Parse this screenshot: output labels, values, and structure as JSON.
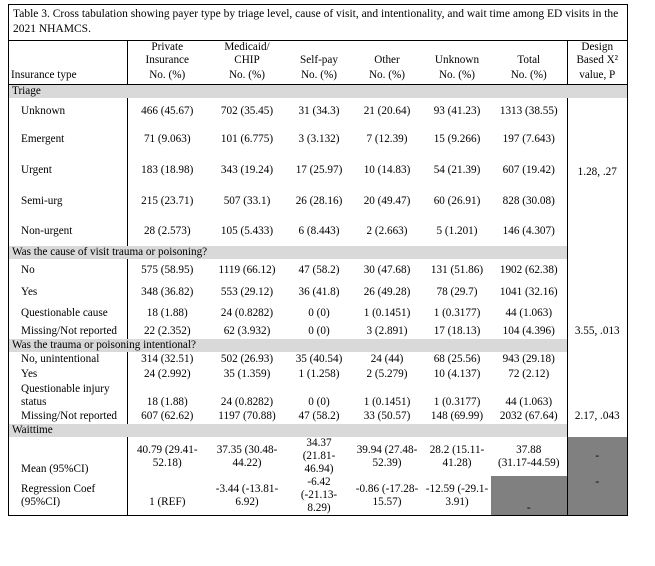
{
  "caption": "Table 3. Cross tabulation showing payer type by triage level, cause of visit, and intentionality, and wait time among ED visits in the 2021 NHAMCS.",
  "header": {
    "cols": [
      {
        "top": "Private",
        "mid": "Insurance",
        "unit": "No. (%)"
      },
      {
        "top": "Medicaid/",
        "mid": "CHIP",
        "unit": "No. (%)"
      },
      {
        "top": "",
        "mid": "Self-pay",
        "unit": "No. (%)"
      },
      {
        "top": "",
        "mid": "Other",
        "unit": "No. (%)"
      },
      {
        "top": "",
        "mid": "Unknown",
        "unit": "No. (%)"
      },
      {
        "top": "",
        "mid": "Total",
        "unit": "No. (%)"
      }
    ],
    "row_label": "Insurance type",
    "design_top": "Design",
    "design_mid": "Based X²",
    "design_unit": "value, P"
  },
  "sections": {
    "triage": {
      "title": "Triage",
      "stat": "1.28, .27",
      "rows": [
        {
          "label": "Unknown",
          "vals": [
            "466 (45.67)",
            "702 (35.45)",
            "31 (34.3)",
            "21 (20.64)",
            "93 (41.23)",
            "1313 (38.55)"
          ]
        },
        {
          "label": "Emergent",
          "vals": [
            "71 (9.063)",
            "101 (6.775)",
            "3 (3.132)",
            "7 (12.39)",
            "15 (9.266)",
            "197 (7.643)"
          ]
        },
        {
          "label": "Urgent",
          "vals": [
            "183 (18.98)",
            "343 (19.24)",
            "17 (25.97)",
            "10 (14.83)",
            "54 (21.39)",
            "607 (19.42)"
          ]
        },
        {
          "label": "Semi-urg",
          "vals": [
            "215 (23.71)",
            "507 (33.1)",
            "26 (28.16)",
            "20 (49.47)",
            "60 (26.91)",
            "828 (30.08)"
          ]
        },
        {
          "label": "Non-urgent",
          "vals": [
            "28 (2.573)",
            "105 (5.433)",
            "6 (8.443)",
            "2 (2.663)",
            "5 (1.201)",
            "146 (4.307)"
          ]
        }
      ]
    },
    "trauma": {
      "title": "Was the cause of visit trauma or poisoning?",
      "stat": "3.55, .013",
      "rows": [
        {
          "label": "No",
          "vals": [
            "575 (58.95)",
            "1119 (66.12)",
            "47 (58.2)",
            "30 (47.68)",
            "131 (51.86)",
            "1902 (62.38)"
          ]
        },
        {
          "label": "Yes",
          "vals": [
            "348 (36.82)",
            "553 (29.12)",
            "36 (41.8)",
            "26 (49.28)",
            "78 (29.7)",
            "1041 (32.16)"
          ]
        },
        {
          "label": "Questionable cause",
          "vals": [
            "18 (1.88)",
            "24 (0.8282)",
            "0 (0)",
            "1 (0.1451)",
            "1 (0.3177)",
            "44 (1.063)"
          ]
        },
        {
          "label": "Missing/Not reported",
          "vals": [
            "22 (2.352)",
            "62 (3.932)",
            "0 (0)",
            "3 (2.891)",
            "17 (18.13)",
            "104 (4.396)"
          ]
        }
      ]
    },
    "intent": {
      "title": "Was the trauma or poisoning intentional?",
      "stat": "2.17, .043",
      "rows": [
        {
          "label": "No, unintentional",
          "vals": [
            "314 (32.51)",
            "502 (26.93)",
            "35 (40.54)",
            "24 (44)",
            "68 (25.56)",
            "943 (29.18)"
          ]
        },
        {
          "label": "Yes",
          "vals": [
            "24 (2.992)",
            "35 (1.359)",
            "1 (1.258)",
            "2 (5.279)",
            "10 (4.137)",
            "72 (2.12)"
          ]
        },
        {
          "label_a": "Questionable injury",
          "label_b": "status",
          "vals": [
            "18 (1.88)",
            "24 (0.8282)",
            "0 (0)",
            "1 (0.1451)",
            "1 (0.3177)",
            "44 (1.063)"
          ]
        },
        {
          "label": "Missing/Not reported",
          "vals": [
            "607 (62.62)",
            "1197 (70.88)",
            "47 (58.2)",
            "33 (50.57)",
            "148 (69.99)",
            "2032 (67.64)"
          ]
        }
      ]
    },
    "wait": {
      "title": "Waittime",
      "mean": {
        "label_a": "",
        "label_b": "Mean (95%CI)",
        "vals_a": [
          "40.79 (29.41-",
          "37.35 (30.48-",
          "34.37 (21.81-",
          "39.94 (27.48-",
          "28.2 (15.11-",
          "37.88"
        ],
        "vals_b": [
          "52.18)",
          "44.22)",
          "46.94)",
          "52.39)",
          "41.28)",
          "(31.17-44.59)"
        ],
        "stat": "-"
      },
      "regression": {
        "label_a": "Regression Coef",
        "label_b": "(95%CI)",
        "vals_a": [
          "",
          "-3.44 (-13.81-",
          "-6.42 (-21.13-",
          "-0.86 (-17.28-",
          "-12.59 (-29.1-",
          ""
        ],
        "vals_b": [
          "1 (REF)",
          "6.92)",
          "8.29)",
          "15.57)",
          "3.91)",
          "-"
        ],
        "stat": "-"
      }
    }
  }
}
